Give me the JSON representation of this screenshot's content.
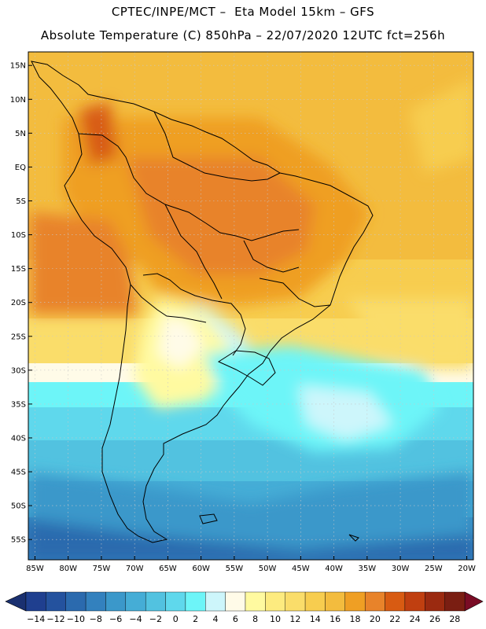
{
  "title_line1": "CPTEC/INPE/MCT –  Eta Model 15km – GFS",
  "title_line2": "Absolute Temperature (C) 850hPa – 22/07/2020 12UTC fct=256h",
  "map": {
    "lon_range": [
      -86,
      -19
    ],
    "lat_range": [
      -58,
      17
    ],
    "lat_labels": [
      {
        "v": 15,
        "t": "15N"
      },
      {
        "v": 10,
        "t": "10N"
      },
      {
        "v": 5,
        "t": "5N"
      },
      {
        "v": 0,
        "t": "EQ"
      },
      {
        "v": -5,
        "t": "5S"
      },
      {
        "v": -10,
        "t": "10S"
      },
      {
        "v": -15,
        "t": "15S"
      },
      {
        "v": -20,
        "t": "20S"
      },
      {
        "v": -25,
        "t": "25S"
      },
      {
        "v": -30,
        "t": "30S"
      },
      {
        "v": -35,
        "t": "35S"
      },
      {
        "v": -40,
        "t": "40S"
      },
      {
        "v": -45,
        "t": "45S"
      },
      {
        "v": -50,
        "t": "50S"
      },
      {
        "v": -55,
        "t": "55S"
      }
    ],
    "lon_labels": [
      {
        "v": -85,
        "t": "85W"
      },
      {
        "v": -80,
        "t": "80W"
      },
      {
        "v": -75,
        "t": "75W"
      },
      {
        "v": -70,
        "t": "70W"
      },
      {
        "v": -65,
        "t": "65W"
      },
      {
        "v": -60,
        "t": "60W"
      },
      {
        "v": -55,
        "t": "55W"
      },
      {
        "v": -50,
        "t": "50W"
      },
      {
        "v": -45,
        "t": "45W"
      },
      {
        "v": -40,
        "t": "40W"
      },
      {
        "v": -35,
        "t": "35W"
      },
      {
        "v": -30,
        "t": "30W"
      },
      {
        "v": -25,
        "t": "25W"
      },
      {
        "v": -20,
        "t": "20W"
      }
    ]
  },
  "colorbar": {
    "labels": [
      "-14",
      "-12",
      "-10",
      "-8",
      "-6",
      "-4",
      "-2",
      "0",
      "2",
      "4",
      "6",
      "8",
      "10",
      "12",
      "14",
      "16",
      "18",
      "20",
      "22",
      "24",
      "26",
      "28"
    ],
    "colors": [
      "#1f3f8f",
      "#24529e",
      "#2b6aae",
      "#3381be",
      "#3b98ca",
      "#45add6",
      "#52c2e0",
      "#5fd8ec",
      "#6df5f8",
      "#cdf6fb",
      "#fffbe8",
      "#fffaa0",
      "#fdeb7f",
      "#fadd6a",
      "#f7cd4f",
      "#f3bc3e",
      "#ef9f24",
      "#e8832a",
      "#d85b12",
      "#c03f10",
      "#9b2a10",
      "#7a1e12"
    ],
    "low_color": "#1a3070",
    "high_color": "#7a0c25"
  }
}
